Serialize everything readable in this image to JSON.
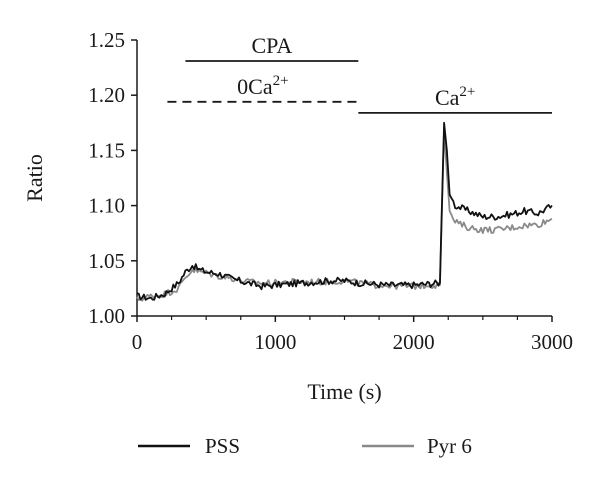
{
  "chart_data": {
    "type": "line",
    "xlabel": "Time (s)",
    "ylabel": "Ratio",
    "xlim": [
      0,
      3000
    ],
    "ylim": [
      1.0,
      1.25
    ],
    "x_ticks": [
      0,
      1000,
      2000,
      3000
    ],
    "x_tick_labels": [
      "0",
      "1000",
      "2000",
      "3000"
    ],
    "y_ticks": [
      1.0,
      1.05,
      1.1,
      1.15,
      1.2,
      1.25
    ],
    "y_tick_labels": [
      "1.00",
      "1.05",
      "1.10",
      "1.15",
      "1.20",
      "1.25"
    ],
    "grid": false,
    "legend_position": "bottom",
    "series": [
      {
        "name": "PSS",
        "color": "#111111",
        "points": [
          [
            0,
            1.018
          ],
          [
            100,
            1.016
          ],
          [
            200,
            1.02
          ],
          [
            300,
            1.03
          ],
          [
            350,
            1.04
          ],
          [
            400,
            1.046
          ],
          [
            450,
            1.042
          ],
          [
            500,
            1.04
          ],
          [
            600,
            1.038
          ],
          [
            700,
            1.033
          ],
          [
            800,
            1.03
          ],
          [
            900,
            1.027
          ],
          [
            1000,
            1.028
          ],
          [
            1100,
            1.029
          ],
          [
            1200,
            1.03
          ],
          [
            1300,
            1.031
          ],
          [
            1400,
            1.032
          ],
          [
            1500,
            1.032
          ],
          [
            1600,
            1.03
          ],
          [
            1700,
            1.029
          ],
          [
            1800,
            1.028
          ],
          [
            1900,
            1.028
          ],
          [
            2000,
            1.028
          ],
          [
            2100,
            1.029
          ],
          [
            2190,
            1.03
          ],
          [
            2200,
            1.08
          ],
          [
            2220,
            1.175
          ],
          [
            2240,
            1.15
          ],
          [
            2260,
            1.11
          ],
          [
            2300,
            1.1
          ],
          [
            2400,
            1.095
          ],
          [
            2500,
            1.09
          ],
          [
            2600,
            1.09
          ],
          [
            2700,
            1.092
          ],
          [
            2800,
            1.095
          ],
          [
            2900,
            1.093
          ],
          [
            3000,
            1.1
          ]
        ]
      },
      {
        "name": "Pyr 6",
        "color": "#8a8a8a",
        "points": [
          [
            0,
            1.015
          ],
          [
            100,
            1.018
          ],
          [
            200,
            1.02
          ],
          [
            300,
            1.025
          ],
          [
            350,
            1.035
          ],
          [
            400,
            1.042
          ],
          [
            450,
            1.04
          ],
          [
            500,
            1.039
          ],
          [
            600,
            1.036
          ],
          [
            700,
            1.034
          ],
          [
            800,
            1.031
          ],
          [
            900,
            1.03
          ],
          [
            1000,
            1.03
          ],
          [
            1100,
            1.031
          ],
          [
            1200,
            1.031
          ],
          [
            1300,
            1.031
          ],
          [
            1400,
            1.031
          ],
          [
            1500,
            1.032
          ],
          [
            1600,
            1.03
          ],
          [
            1700,
            1.028
          ],
          [
            1800,
            1.028
          ],
          [
            1900,
            1.027
          ],
          [
            2000,
            1.027
          ],
          [
            2100,
            1.028
          ],
          [
            2190,
            1.028
          ],
          [
            2200,
            1.075
          ],
          [
            2220,
            1.17
          ],
          [
            2240,
            1.13
          ],
          [
            2260,
            1.095
          ],
          [
            2300,
            1.085
          ],
          [
            2400,
            1.08
          ],
          [
            2500,
            1.078
          ],
          [
            2600,
            1.078
          ],
          [
            2700,
            1.08
          ],
          [
            2800,
            1.082
          ],
          [
            2900,
            1.083
          ],
          [
            3000,
            1.088
          ]
        ]
      }
    ],
    "annotations": [
      {
        "id": "cpa",
        "text": "CPA",
        "line": "solid",
        "x_start": 350,
        "x_end": 1600,
        "y": 1.231
      },
      {
        "id": "zero-ca",
        "text": "0Ca",
        "sup": "2+",
        "line": "dashed",
        "x_start": 220,
        "x_end": 1600,
        "y": 1.194
      },
      {
        "id": "ca",
        "text": "Ca",
        "sup": "2+",
        "line": "solid",
        "x_start": 1600,
        "x_end": 3000,
        "y": 1.184
      }
    ]
  }
}
